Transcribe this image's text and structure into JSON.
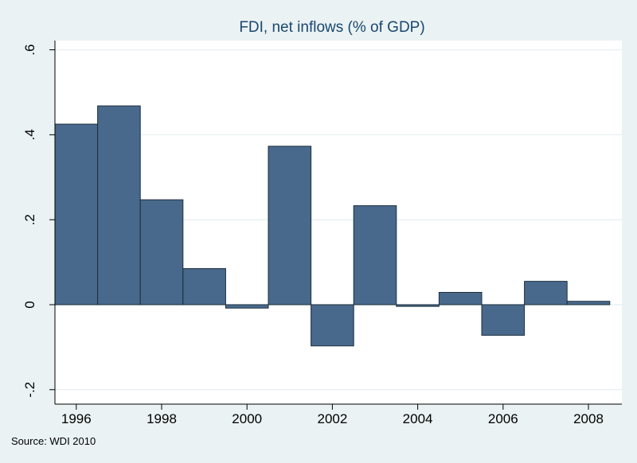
{
  "chart_data": {
    "type": "bar",
    "title": "FDI, net inflows (% of GDP)",
    "note": "Source: WDI 2010",
    "xlabel": "",
    "ylabel": "",
    "x": [
      1996,
      1997,
      1998,
      1999,
      2000,
      2001,
      2002,
      2003,
      2004,
      2005,
      2006,
      2007,
      2008
    ],
    "values": [
      0.425,
      0.468,
      0.247,
      0.085,
      -0.008,
      0.373,
      -0.097,
      0.233,
      -0.004,
      0.029,
      -0.072,
      0.055,
      0.008
    ],
    "xticks": [
      1996,
      1998,
      2000,
      2002,
      2004,
      2006,
      2008
    ],
    "xtick_labels": [
      "1996",
      "1998",
      "2000",
      "2002",
      "2004",
      "2006",
      "2008"
    ],
    "yticks": [
      -0.2,
      0,
      0.2,
      0.4,
      0.6
    ],
    "ytick_labels": [
      "-.2",
      "0",
      ".2",
      ".4",
      ".6"
    ],
    "ylim": [
      -0.2,
      0.6
    ],
    "xlim": [
      1995.5,
      2008.5
    ],
    "grid": true,
    "legend": "none",
    "colors": {
      "bar_fill": "#48698c",
      "bar_stroke": "#1c2e3c",
      "plot_bg": "#ffffff",
      "page_bg": "#eaf2f3",
      "grid": "#eaf2f3",
      "title": "#1a476f"
    }
  }
}
